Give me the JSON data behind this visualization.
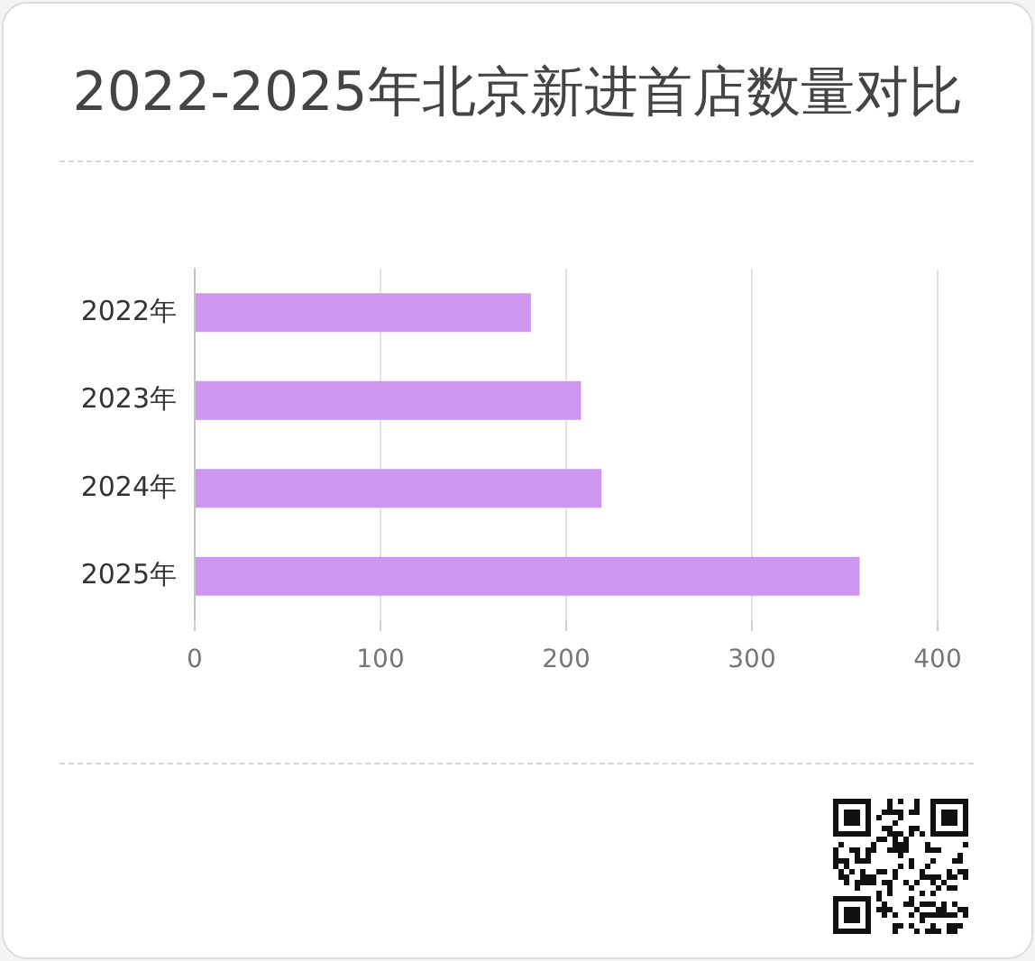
{
  "chart_data": {
    "type": "bar",
    "title": "2022-2025年北京新进首店数量对比",
    "orientation": "horizontal",
    "categories": [
      "2022年",
      "2023年",
      "2024年",
      "2025年"
    ],
    "values": [
      181,
      208,
      219,
      358
    ],
    "color": "#cd97f0",
    "xlim": [
      0,
      400
    ],
    "xticks": [
      0,
      100,
      200,
      300,
      400
    ],
    "grid": "x"
  }
}
